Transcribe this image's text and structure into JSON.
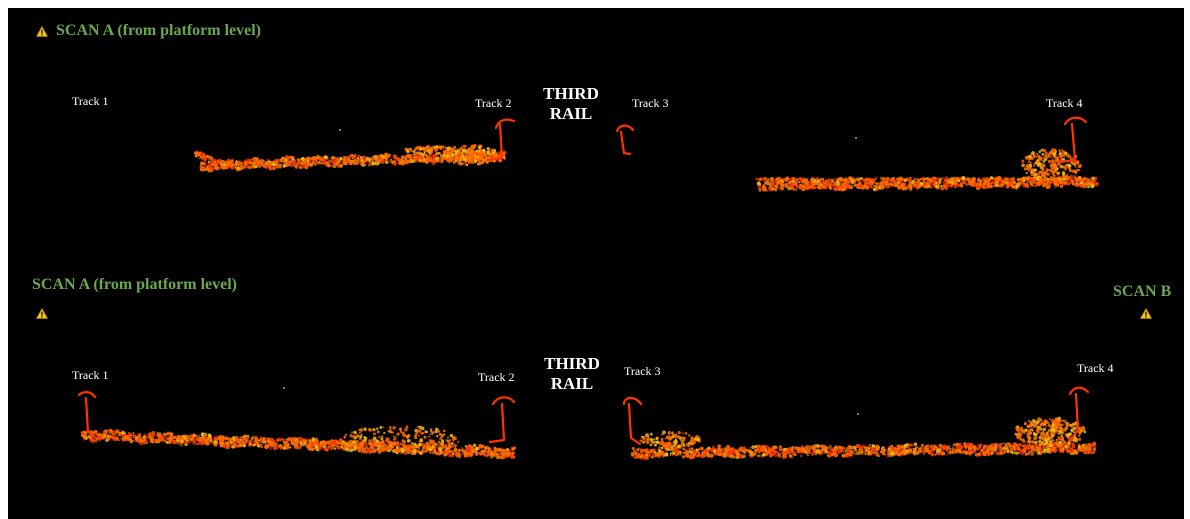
{
  "colors": {
    "background": "#000000",
    "scan_label": "#6aa84f",
    "track_label": "#ffffff",
    "rail": "#ff3300",
    "cloud_primary": "#ff6a00",
    "cloud_secondary": "#e8c21a",
    "warning_icon": "#f0c419"
  },
  "icons": {
    "marker": "warning-triangle-icon"
  },
  "panels": {
    "top": {
      "scan_label": "SCAN A (from platform level)",
      "tracks": {
        "t1": "Track 1",
        "t2": "Track 2",
        "t3": "Track 3",
        "t4": "Track 4"
      },
      "rail_line1": "THIRD",
      "rail_line2": "RAIL"
    },
    "bottom": {
      "scan_label_a": "SCAN A (from platform level)",
      "scan_label_b": "SCAN B",
      "tracks": {
        "t1": "Track 1",
        "t2": "Track 2",
        "t3": "Track 3",
        "t4": "Track 4"
      },
      "rail_line1": "THIRD",
      "rail_line2": "RAIL"
    }
  }
}
